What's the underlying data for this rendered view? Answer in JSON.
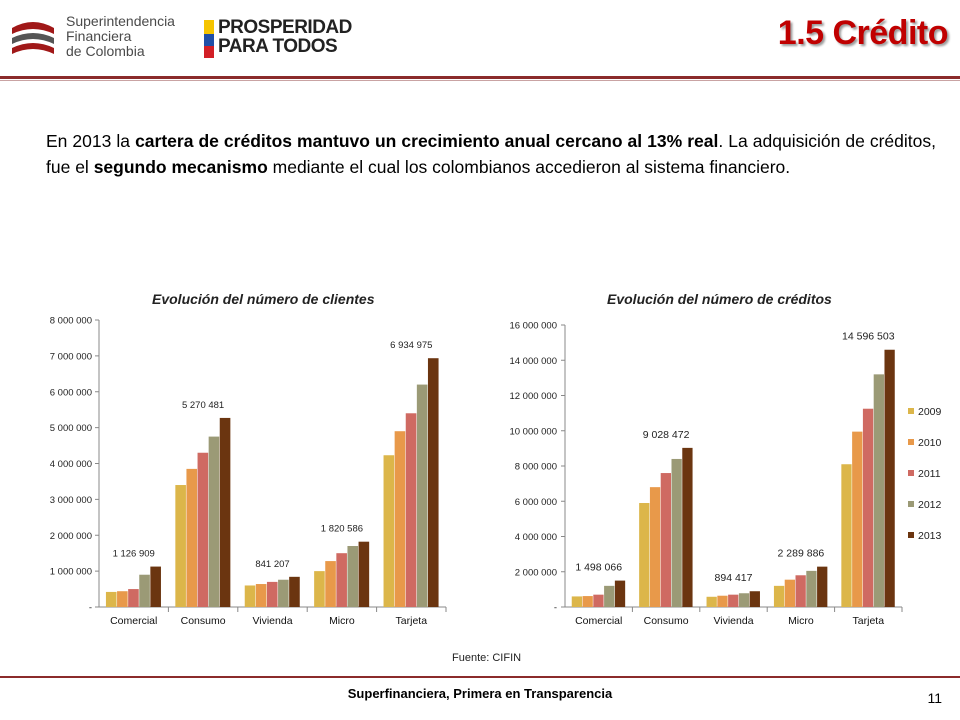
{
  "header": {
    "logo_lines": [
      "Superintendencia",
      "Financiera",
      "de Colombia"
    ],
    "pp_lines": [
      "PROSPERIDAD",
      "PARA TODOS"
    ],
    "title": "1.5 Crédito"
  },
  "intro": {
    "p1": "En 2013 la ",
    "b1": "cartera de créditos mantuvo un crecimiento anual cercano al 13% real",
    "p2": ".  La adquisición de créditos, fue el ",
    "b2": "segundo mecanismo",
    "p3": " mediante el cual los colombianos accedieron al sistema financiero."
  },
  "colors": {
    "2009": "#dcb64a",
    "2010": "#e8994a",
    "2011": "#cf6a62",
    "2012": "#9b9a76",
    "2013": "#6b3510",
    "title": "#c00000",
    "rule": "#8b2b2b"
  },
  "chart_data": [
    {
      "type": "bar",
      "title": "Evolución del número de clientes",
      "categories": [
        "Comercial",
        "Consumo",
        "Vivienda",
        "Micro",
        "Tarjeta"
      ],
      "ylim": [
        0,
        8000000
      ],
      "yticks": [
        "-",
        "1 000 000",
        "2 000 000",
        "3 000 000",
        "4 000 000",
        "5 000 000",
        "6 000 000",
        "7 000 000",
        "8 000 000"
      ],
      "series": [
        {
          "name": "2009",
          "values": [
            420000,
            3400000,
            600000,
            1000000,
            4230000
          ]
        },
        {
          "name": "2010",
          "values": [
            440000,
            3850000,
            640000,
            1280000,
            4900000
          ]
        },
        {
          "name": "2011",
          "values": [
            500000,
            4300000,
            700000,
            1500000,
            5400000
          ]
        },
        {
          "name": "2012",
          "values": [
            900000,
            4750000,
            760000,
            1700000,
            6200000
          ]
        },
        {
          "name": "2013",
          "values": [
            1126909,
            5270481,
            841207,
            1820586,
            6934975
          ]
        }
      ],
      "data_labels": [
        "1 126 909",
        "5 270 481",
        "841 207",
        "1 820 586",
        "6 934 975"
      ]
    },
    {
      "type": "bar",
      "title": "Evolución del número de créditos",
      "categories": [
        "Comercial",
        "Consumo",
        "Vivienda",
        "Micro",
        "Tarjeta"
      ],
      "ylim": [
        0,
        16000000
      ],
      "yticks": [
        "-",
        "2 000 000",
        "4 000 000",
        "6 000 000",
        "8 000 000",
        "10 000 000",
        "12 000 000",
        "14 000 000",
        "16 000 000"
      ],
      "series": [
        {
          "name": "2009",
          "values": [
            600000,
            5900000,
            580000,
            1200000,
            8100000
          ]
        },
        {
          "name": "2010",
          "values": [
            620000,
            6800000,
            640000,
            1550000,
            9950000
          ]
        },
        {
          "name": "2011",
          "values": [
            700000,
            7600000,
            700000,
            1800000,
            11250000
          ]
        },
        {
          "name": "2012",
          "values": [
            1200000,
            8400000,
            780000,
            2050000,
            13200000
          ]
        },
        {
          "name": "2013",
          "values": [
            1498066,
            9028472,
            894417,
            2289886,
            14596503
          ]
        }
      ],
      "data_labels": [
        "1 498 066",
        "9 028 472",
        "894 417",
        "2 289 886",
        "14 596 503"
      ],
      "legend": [
        "2009",
        "2010",
        "2011",
        "2012",
        "2013"
      ]
    }
  ],
  "source": "Fuente: CIFIN",
  "footer": {
    "text": "Superfinanciera, Primera en Transparencia",
    "page": "11"
  }
}
